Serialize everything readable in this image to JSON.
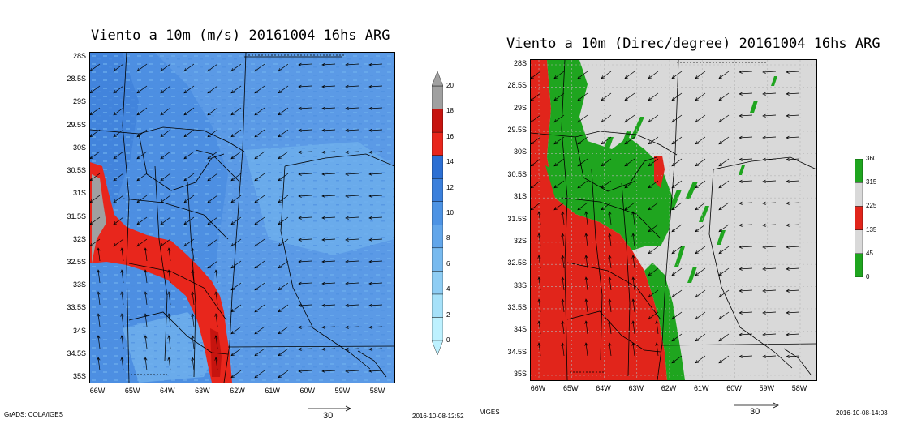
{
  "left": {
    "title": "Viento a 10m (m/s) 20161004 16hs ARG",
    "footer_left": "GrADS: COLA/IGES",
    "footer_right": "2016-10-08-12:52",
    "ref_vector": "30",
    "colorbar": {
      "labels": [
        "0",
        "2",
        "4",
        "6",
        "8",
        "10",
        "12",
        "14",
        "16",
        "18",
        "20"
      ],
      "colors": [
        "#bdf1ff",
        "#a6e1f9",
        "#8ecdf4",
        "#78baef",
        "#62a6ea",
        "#4d93e4",
        "#3b80dc",
        "#2c6fd3",
        "#e8261c",
        "#c6140f",
        "#a0a0a0"
      ]
    }
  },
  "right": {
    "title": "Viento a 10m (Direc/degree) 20161004 16hs ARG",
    "footer_left": "\\/IGES",
    "footer_right": "2016-10-08-14:03",
    "ref_vector": "30",
    "colorbar": {
      "labels": [
        "0",
        "45",
        "135",
        "225",
        "315",
        "360"
      ],
      "colors": [
        "#1fa51f",
        "#d9d9d9",
        "#e1251b",
        "#d9d9d9",
        "#1fa51f"
      ]
    }
  },
  "lat_labels": [
    "28S",
    "28.5S",
    "29S",
    "29.5S",
    "30S",
    "30.5S",
    "31S",
    "31.5S",
    "32S",
    "32.5S",
    "33S",
    "33.5S",
    "34S",
    "34.5S",
    "35S"
  ],
  "lon_labels": [
    "66W",
    "65W",
    "64W",
    "63W",
    "62W",
    "61W",
    "60W",
    "59W",
    "58W"
  ],
  "colors": {
    "speed_bg": "#5b9ae6",
    "speed_light": "#78baef",
    "speed_high": "#e8261c",
    "dir_gray": "#d9d9d9",
    "dir_green": "#1fa51f",
    "dir_red": "#e1251b"
  }
}
